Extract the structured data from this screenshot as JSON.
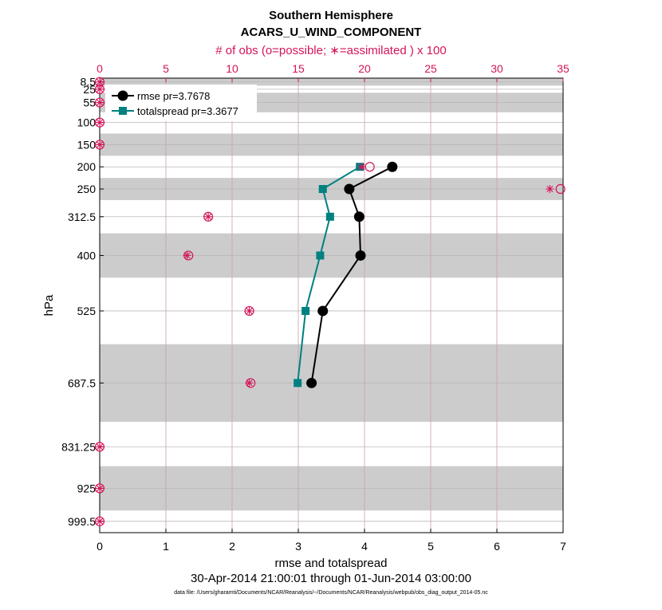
{
  "chart_data": {
    "type": "line",
    "title": "Southern Hemisphere",
    "subtitle": "ACARS_U_WIND_COMPONENT",
    "top_axis_label": "# of obs (o=possible; ∗=assimilated ) x 100",
    "xlabel": "rmse and totalspread",
    "ylabel": "hPa",
    "date_range": "30-Apr-2014 21:00:01 through 01-Jun-2014 03:00:00",
    "data_file": "data file: /Users/gharamti/Documents/NCAR/Reanalysis/~/Documents/NCAR/Reanalysis/webpub/obs_diag_output_2014-05.nc",
    "xlim": [
      0,
      7
    ],
    "x_ticks": [
      0,
      1,
      2,
      3,
      4,
      5,
      6,
      7
    ],
    "top_xlim": [
      0,
      35
    ],
    "top_ticks": [
      0,
      5,
      10,
      15,
      20,
      25,
      30,
      35
    ],
    "ylim": [
      1025,
      0
    ],
    "y_ticks": [
      {
        "value": 8.5,
        "label": "8.5"
      },
      {
        "value": 25,
        "label": "25"
      },
      {
        "value": 55,
        "label": "55"
      },
      {
        "value": 100,
        "label": "100"
      },
      {
        "value": 150,
        "label": "150"
      },
      {
        "value": 200,
        "label": "200"
      },
      {
        "value": 250,
        "label": "250"
      },
      {
        "value": 312.5,
        "label": "312.5"
      },
      {
        "value": 400,
        "label": "400"
      },
      {
        "value": 525,
        "label": "525"
      },
      {
        "value": 687.5,
        "label": "687.5"
      },
      {
        "value": 831.25,
        "label": "831.25"
      },
      {
        "value": 925,
        "label": "925"
      },
      {
        "value": 999.5,
        "label": "999.5"
      }
    ],
    "shaded_bands": [
      [
        0,
        17
      ],
      [
        33,
        77
      ],
      [
        125,
        175
      ],
      [
        225,
        275
      ],
      [
        350,
        450
      ],
      [
        600,
        775
      ],
      [
        875,
        975
      ]
    ],
    "legend_position": "top-left",
    "series": [
      {
        "name": "rmse pr=3.7678",
        "color": "#000000",
        "marker": "circle",
        "points": [
          {
            "x": 4.42,
            "y": 200
          },
          {
            "x": 3.77,
            "y": 250
          },
          {
            "x": 3.92,
            "y": 312.5
          },
          {
            "x": 3.94,
            "y": 400
          },
          {
            "x": 3.37,
            "y": 525
          },
          {
            "x": 3.2,
            "y": 687.5
          }
        ]
      },
      {
        "name": "totalspread pr=3.3677",
        "color": "#008080",
        "marker": "square",
        "points": [
          {
            "x": 3.93,
            "y": 200
          },
          {
            "x": 3.37,
            "y": 250
          },
          {
            "x": 3.48,
            "y": 312.5
          },
          {
            "x": 3.33,
            "y": 400
          },
          {
            "x": 3.11,
            "y": 525
          },
          {
            "x": 2.99,
            "y": 687.5
          }
        ]
      }
    ],
    "obs_counts": {
      "color": "#d4145a",
      "levels": [
        8.5,
        25,
        55,
        100,
        150,
        200,
        250,
        312.5,
        400,
        525,
        687.5,
        831.25,
        925,
        999.5
      ],
      "possible": [
        0,
        0,
        0,
        0,
        0,
        20.4,
        34.8,
        8.2,
        6.7,
        11.3,
        11.4,
        0,
        0,
        0
      ],
      "assimilated": [
        0,
        0,
        0,
        0,
        0,
        19.8,
        34.0,
        8.2,
        6.6,
        11.3,
        11.3,
        0,
        0,
        0
      ]
    }
  }
}
